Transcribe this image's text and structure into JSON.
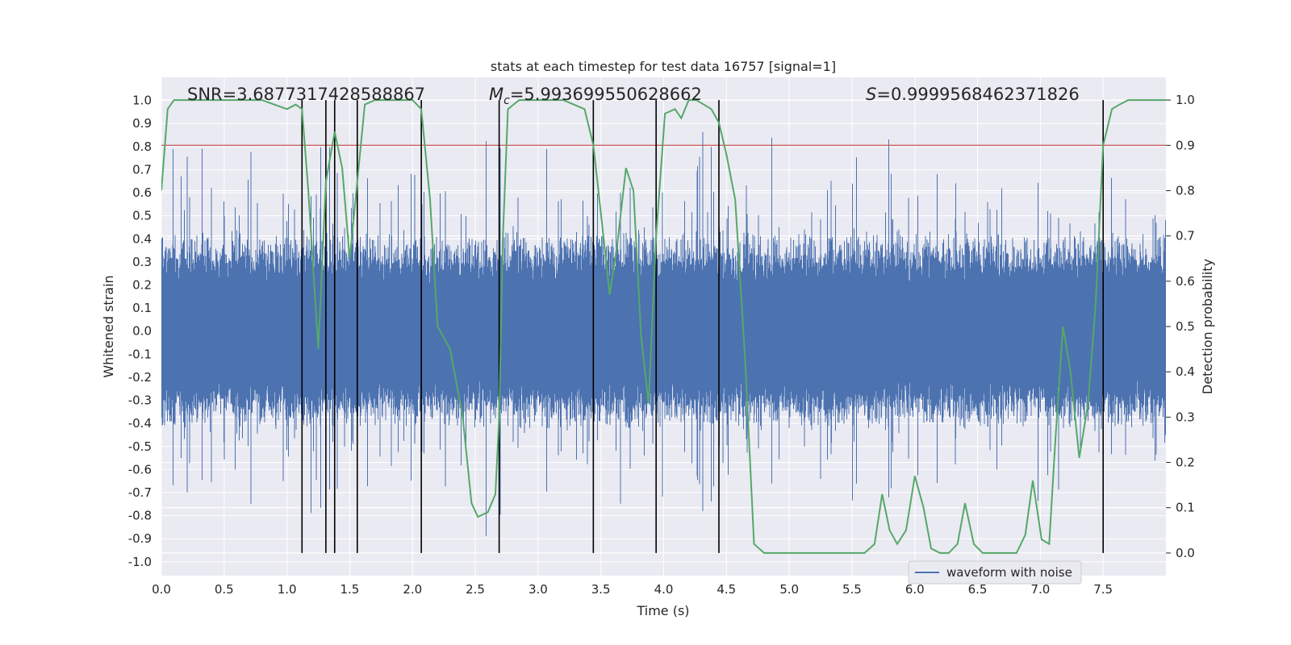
{
  "chart_data": {
    "type": "line",
    "title": "stats at each timestep for test data 16757 [signal=1]",
    "xlabel": "Time (s)",
    "ylabel_left": "Whitened strain",
    "ylabel_right": "Detection probability",
    "xlim": [
      0,
      8.0
    ],
    "ylim_left": [
      -1.06,
      1.1
    ],
    "ylim_right": [
      -0.05,
      1.05
    ],
    "x_ticks": [
      "0.0",
      "0.5",
      "1.0",
      "1.5",
      "2.0",
      "2.5",
      "3.0",
      "3.5",
      "4.0",
      "4.5",
      "5.0",
      "5.5",
      "6.0",
      "6.5",
      "7.0",
      "7.5"
    ],
    "y_left_ticks": [
      "1.0",
      "0.9",
      "0.8",
      "0.7",
      "0.6",
      "0.5",
      "0.4",
      "0.3",
      "0.2",
      "0.1",
      "0.0",
      "-0.1",
      "-0.2",
      "-0.3",
      "-0.4",
      "-0.5",
      "-0.6",
      "-0.7",
      "-0.8",
      "-0.9",
      "-1.0"
    ],
    "y_right_ticks": [
      "1.0",
      "0.9",
      "0.8",
      "0.7",
      "0.6",
      "0.5",
      "0.4",
      "0.3",
      "0.2",
      "0.1",
      "0.0"
    ],
    "grid": true,
    "legend_position": "lower-right",
    "annotations": {
      "snr": "SNR=3.6877317428588867",
      "mc": "=5.993699550628662",
      "s": "=0.9999568462371826"
    },
    "threshold": {
      "value": 0.9,
      "axis": "right",
      "color": "#c44e52"
    },
    "vertical_lines_x": [
      1.12,
      1.31,
      1.38,
      1.56,
      2.07,
      2.69,
      3.44,
      3.94,
      4.44,
      7.5
    ],
    "series": [
      {
        "name": "waveform with noise",
        "axis": "left",
        "color": "#4c72b0",
        "style": "dense noise, core amplitude ~±0.4, spikes up to ±0.9"
      },
      {
        "axis": "right",
        "color": "#55a868",
        "x": [
          0.0,
          0.05,
          0.1,
          0.2,
          0.4,
          0.6,
          0.8,
          1.0,
          1.07,
          1.12,
          1.17,
          1.25,
          1.31,
          1.38,
          1.44,
          1.5,
          1.56,
          1.62,
          1.7,
          1.85,
          2.0,
          2.07,
          2.14,
          2.2,
          2.3,
          2.4,
          2.47,
          2.52,
          2.6,
          2.66,
          2.69,
          2.72,
          2.76,
          2.85,
          3.0,
          3.2,
          3.37,
          3.44,
          3.52,
          3.57,
          3.63,
          3.7,
          3.76,
          3.82,
          3.88,
          3.94,
          4.01,
          4.09,
          4.14,
          4.2,
          4.26,
          4.32,
          4.38,
          4.44,
          4.5,
          4.57,
          4.65,
          4.72,
          4.8,
          4.9,
          5.0,
          5.1,
          5.2,
          5.3,
          5.4,
          5.5,
          5.6,
          5.68,
          5.74,
          5.8,
          5.86,
          5.93,
          6.0,
          6.07,
          6.13,
          6.2,
          6.27,
          6.34,
          6.4,
          6.47,
          6.54,
          6.6,
          6.67,
          6.74,
          6.81,
          6.88,
          6.94,
          7.01,
          7.07,
          7.12,
          7.18,
          7.24,
          7.31,
          7.38,
          7.44,
          7.5,
          7.57,
          7.63,
          7.7,
          7.8,
          8.0
        ],
        "y": [
          0.8,
          0.98,
          1.0,
          1.0,
          1.0,
          1.0,
          1.0,
          0.98,
          0.99,
          0.98,
          0.8,
          0.45,
          0.82,
          0.93,
          0.85,
          0.65,
          0.82,
          0.99,
          1.0,
          1.0,
          1.0,
          0.98,
          0.78,
          0.5,
          0.45,
          0.3,
          0.11,
          0.08,
          0.09,
          0.13,
          0.3,
          0.7,
          0.98,
          1.0,
          1.0,
          1.0,
          0.98,
          0.9,
          0.7,
          0.57,
          0.68,
          0.85,
          0.8,
          0.48,
          0.33,
          0.7,
          0.97,
          0.98,
          0.96,
          1.0,
          1.0,
          0.99,
          0.98,
          0.95,
          0.88,
          0.78,
          0.42,
          0.02,
          0.0,
          0.0,
          0.0,
          0.0,
          0.0,
          0.0,
          0.0,
          0.0,
          0.0,
          0.02,
          0.13,
          0.05,
          0.02,
          0.05,
          0.17,
          0.1,
          0.01,
          0.0,
          0.0,
          0.02,
          0.11,
          0.02,
          0.0,
          0.0,
          0.0,
          0.0,
          0.0,
          0.04,
          0.16,
          0.03,
          0.02,
          0.25,
          0.5,
          0.4,
          0.21,
          0.33,
          0.55,
          0.9,
          0.98,
          0.99,
          1.0,
          1.0,
          1.0
        ]
      }
    ]
  }
}
